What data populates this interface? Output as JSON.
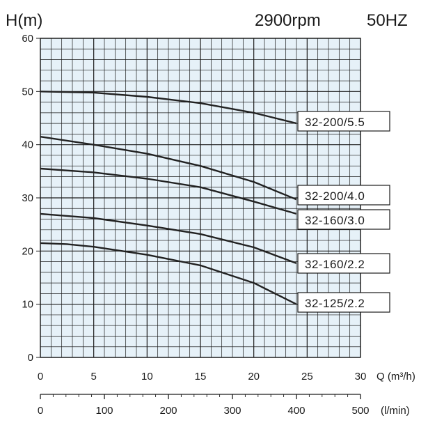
{
  "chart_data": {
    "type": "line",
    "title_left": "H(m)",
    "title_speed": "2900rpm",
    "title_freq": "50HZ",
    "ylabel": "H(m)",
    "xlabel": "Q (m³/h)",
    "x2label": "(l/min)",
    "xlim": [
      0,
      30
    ],
    "ylim": [
      0,
      60
    ],
    "x2lim": [
      0,
      500
    ],
    "xticks": [
      "0",
      "5",
      "10",
      "15",
      "20",
      "25",
      "30"
    ],
    "yticks": [
      "0",
      "10",
      "20",
      "30",
      "40",
      "50",
      "60"
    ],
    "x2ticks": [
      "0",
      "100",
      "200",
      "300",
      "400",
      "500"
    ],
    "grid": true,
    "colors": {
      "background": "#e6f1f8",
      "grid": "#1a1a1a",
      "curve": "#222222"
    },
    "series": [
      {
        "name": "32-200/5.5",
        "x": [
          0,
          5,
          10,
          15,
          20,
          24
        ],
        "y": [
          50,
          49.8,
          49,
          47.8,
          46,
          44
        ]
      },
      {
        "name": "32-200/4.0",
        "x": [
          0,
          5,
          10,
          15,
          20,
          24
        ],
        "y": [
          41.5,
          40,
          38.3,
          36,
          33,
          29.7
        ]
      },
      {
        "name": "32-160/3.0",
        "x": [
          0,
          5,
          10,
          15,
          20,
          24
        ],
        "y": [
          35.5,
          34.8,
          33.6,
          32,
          29.3,
          27
        ]
      },
      {
        "name": "32-160/2.2",
        "x": [
          0,
          5,
          10,
          15,
          20,
          24
        ],
        "y": [
          27,
          26.2,
          24.8,
          23.2,
          20.7,
          17.7
        ]
      },
      {
        "name": "32-125/2.2",
        "x": [
          0,
          2.5,
          5,
          10,
          15,
          20,
          24
        ],
        "y": [
          21.5,
          21.3,
          20.8,
          19.3,
          17.3,
          14,
          10
        ]
      }
    ]
  }
}
